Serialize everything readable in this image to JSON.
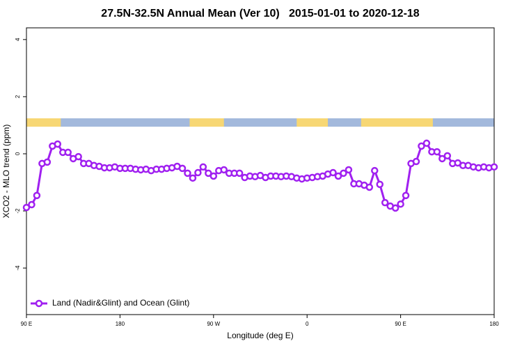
{
  "chart_data": {
    "type": "line",
    "title": "27.5N-32.5N Annual Mean (Ver 10)   2015-01-01 to 2020-12-18",
    "xlabel": "Longitude (deg E)",
    "ylabel": "XCO2 - MLO trend (ppm)",
    "x": [
      90,
      95,
      100,
      105,
      110,
      115,
      120,
      125,
      130,
      135,
      140,
      145,
      150,
      155,
      160,
      165,
      170,
      175,
      180,
      185,
      190,
      195,
      200,
      205,
      210,
      215,
      220,
      225,
      230,
      235,
      240,
      245,
      250,
      255,
      260,
      265,
      270,
      275,
      280,
      285,
      290,
      295,
      300,
      305,
      310,
      315,
      320,
      325,
      330,
      335,
      340,
      345,
      350,
      355,
      360,
      365,
      370,
      375,
      380,
      385,
      390,
      395,
      400,
      405,
      410,
      415,
      420,
      425,
      430,
      435,
      440,
      445,
      450,
      455,
      460,
      465,
      470,
      475,
      480,
      485,
      490,
      495,
      500,
      505,
      510,
      515,
      520,
      525,
      530,
      535,
      540
    ],
    "series": [
      {
        "name": "Land (Nadir&Glint) and Ocean (Glint)",
        "color": "#a020f0",
        "values": [
          -1.88,
          -1.78,
          -1.46,
          -0.34,
          -0.29,
          0.27,
          0.34,
          0.05,
          0.05,
          -0.17,
          -0.1,
          -0.34,
          -0.34,
          -0.41,
          -0.44,
          -0.49,
          -0.49,
          -0.46,
          -0.51,
          -0.51,
          -0.51,
          -0.54,
          -0.56,
          -0.54,
          -0.59,
          -0.54,
          -0.54,
          -0.51,
          -0.49,
          -0.44,
          -0.51,
          -0.68,
          -0.85,
          -0.66,
          -0.46,
          -0.68,
          -0.78,
          -0.59,
          -0.56,
          -0.68,
          -0.68,
          -0.68,
          -0.83,
          -0.78,
          -0.8,
          -0.76,
          -0.83,
          -0.78,
          -0.78,
          -0.8,
          -0.78,
          -0.8,
          -0.85,
          -0.88,
          -0.85,
          -0.83,
          -0.8,
          -0.78,
          -0.71,
          -0.66,
          -0.78,
          -0.68,
          -0.56,
          -1.05,
          -1.05,
          -1.1,
          -1.17,
          -0.59,
          -1.07,
          -1.71,
          -1.83,
          -1.9,
          -1.76,
          -1.46,
          -0.34,
          -0.27,
          0.27,
          0.37,
          0.07,
          0.07,
          -0.17,
          -0.07,
          -0.34,
          -0.32,
          -0.41,
          -0.41,
          -0.46,
          -0.49,
          -0.46,
          -0.49,
          -0.46
        ]
      }
    ],
    "xlim": [
      90,
      540
    ],
    "xticks": [
      {
        "value": 90,
        "label": "90 E"
      },
      180,
      {
        "value": 270,
        "label": "90 W"
      },
      {
        "value": 360,
        "label": "0"
      },
      {
        "value": 450,
        "label": "90 E"
      },
      {
        "value": 540,
        "label": "180"
      }
    ],
    "ylim": [
      -5.63,
      4.41
    ],
    "yticks": [
      -4,
      -2,
      0,
      2,
      4
    ],
    "land_bands": [
      [
        90,
        123
      ],
      [
        247,
        280
      ],
      [
        350,
        380
      ],
      [
        412,
        481
      ]
    ],
    "land_color": "#f7d774",
    "ocean_color": "#a3b9dc",
    "legend": "bottom-left"
  }
}
